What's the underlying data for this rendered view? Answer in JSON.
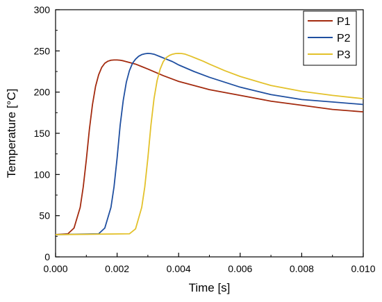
{
  "chart_data": {
    "type": "line",
    "xlabel": "Time [s]",
    "ylabel": "Temperature [°C]",
    "xlim": [
      0.0,
      0.01
    ],
    "ylim": [
      0,
      300
    ],
    "x_ticks": [
      "0.000",
      "0.002",
      "0.004",
      "0.006",
      "0.008",
      "0.010"
    ],
    "y_ticks": [
      "0",
      "50",
      "100",
      "150",
      "200",
      "250",
      "300"
    ],
    "grid": false,
    "legend_position": "top-right",
    "series": [
      {
        "name": "P1",
        "color": "#a32a0e",
        "x": [
          0.0,
          0.0004,
          0.0006,
          0.0008,
          0.0009,
          0.001,
          0.0011,
          0.0012,
          0.0013,
          0.0014,
          0.0015,
          0.0016,
          0.0017,
          0.0018,
          0.0019,
          0.002,
          0.0021,
          0.0022,
          0.0024,
          0.0026,
          0.0028,
          0.003,
          0.0035,
          0.004,
          0.005,
          0.006,
          0.007,
          0.008,
          0.009,
          0.01
        ],
        "y": [
          27,
          28,
          35,
          60,
          85,
          118,
          155,
          185,
          207,
          221,
          230,
          235,
          237.5,
          238.7,
          239,
          239,
          238.7,
          238,
          236,
          234,
          231,
          228,
          220,
          213,
          203,
          196,
          189,
          184,
          179,
          176
        ]
      },
      {
        "name": "P2",
        "color": "#1f4fa0",
        "x": [
          0.0,
          0.0014,
          0.0016,
          0.0018,
          0.0019,
          0.002,
          0.0021,
          0.0022,
          0.0023,
          0.0024,
          0.0025,
          0.0026,
          0.0027,
          0.0028,
          0.0029,
          0.003,
          0.0031,
          0.0032,
          0.0034,
          0.0036,
          0.0038,
          0.004,
          0.0045,
          0.005,
          0.006,
          0.007,
          0.008,
          0.009,
          0.01
        ],
        "y": [
          27,
          28,
          35,
          60,
          85,
          120,
          160,
          190,
          212,
          226,
          235,
          240,
          243.5,
          245.5,
          246.5,
          247,
          246.7,
          246,
          243,
          240,
          237,
          233,
          225,
          218,
          206,
          197,
          191,
          188,
          185
        ]
      },
      {
        "name": "P3",
        "color": "#e3c12a",
        "x": [
          0.0,
          0.0024,
          0.0026,
          0.0028,
          0.0029,
          0.003,
          0.0031,
          0.0032,
          0.0033,
          0.0034,
          0.0035,
          0.0036,
          0.0037,
          0.0038,
          0.0039,
          0.004,
          0.0041,
          0.0042,
          0.0044,
          0.0046,
          0.0048,
          0.005,
          0.0055,
          0.006,
          0.007,
          0.008,
          0.009,
          0.01
        ],
        "y": [
          27,
          28,
          34,
          60,
          85,
          120,
          160,
          192,
          214,
          228,
          237,
          242,
          244.5,
          246,
          246.8,
          247,
          246.8,
          246.2,
          243.5,
          240.5,
          237.5,
          234,
          226,
          219,
          208,
          201,
          196,
          192
        ]
      }
    ]
  }
}
